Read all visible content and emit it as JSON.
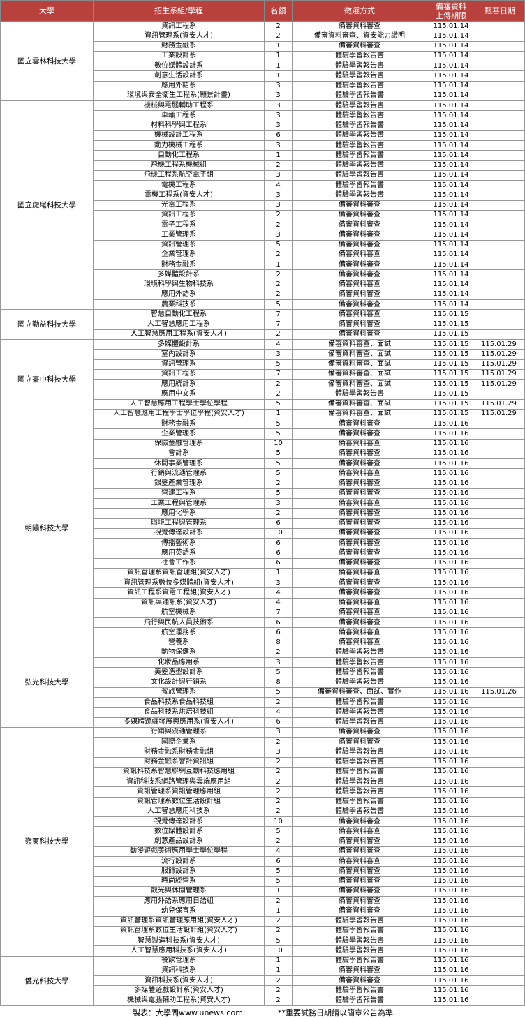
{
  "table": {
    "headers": [
      "大學",
      "招生系組/學程",
      "名額",
      "徵選方式",
      "備審資料上傳期限",
      "甄審日期"
    ],
    "groups": [
      {
        "university": "國立雲林科技大學",
        "rows": [
          [
            "資訊工程系",
            2,
            "備審資料審查",
            "115.01.14"
          ],
          [
            "資訊管理系(資安人才)",
            2,
            "備審資料審查、資安能力證明",
            "115.01.14"
          ],
          [
            "財務金融系",
            1,
            "備審資料審查",
            "115.01.14"
          ],
          [
            "工業設計系",
            1,
            "體驗學習報告書",
            "115.01.14"
          ],
          [
            "數位媒體設計系",
            1,
            "體驗學習報告書",
            "115.01.14"
          ],
          [
            "創意生活設計系",
            1,
            "體驗學習報告書",
            "115.01.14"
          ],
          [
            "應用外語系",
            3,
            "體驗學習報告書",
            "115.01.14"
          ],
          [
            "環境與安全衛生工程系(願景計畫)",
            3,
            "體驗學習報告書",
            "115.01.14"
          ]
        ]
      },
      {
        "university": "國立虎尾科技大學",
        "rows": [
          [
            "機械與電腦輔助工程系",
            3,
            "體驗學習報告書",
            "115.01.14"
          ],
          [
            "車輛工程系",
            3,
            "體驗學習報告書",
            "115.01.14"
          ],
          [
            "材料科學與工程系",
            3,
            "體驗學習報告書",
            "115.01.14"
          ],
          [
            "機械設計工程系",
            6,
            "體驗學習報告書",
            "115.01.14"
          ],
          [
            "動力機械工程系",
            3,
            "體驗學習報告書",
            "115.01.14"
          ],
          [
            "自動化工程系",
            1,
            "體驗學習報告書",
            "115.01.14"
          ],
          [
            "飛機工程系機械組",
            2,
            "體驗學習報告書",
            "115.01.14"
          ],
          [
            "飛機工程系航空電子組",
            3,
            "體驗學習報告書",
            "115.01.14"
          ],
          [
            "電機工程系",
            4,
            "體驗學習報告書",
            "115.01.14"
          ],
          [
            "電機工程系(資安人才)",
            3,
            "體驗學習報告書",
            "115.01.14"
          ],
          [
            "光電工程系",
            3,
            "備審資料審查",
            "115.01.14"
          ],
          [
            "資訊工程系",
            2,
            "備審資料審查",
            "115.01.14"
          ],
          [
            "電子工程系",
            2,
            "備審資料審查",
            "115.01.14"
          ],
          [
            "工業管理系",
            3,
            "備審資料審查",
            "115.01.14"
          ],
          [
            "資訊管理系",
            5,
            "備審資料審查",
            "115.01.14"
          ],
          [
            "企業管理系",
            2,
            "備審資料審查",
            "115.01.14"
          ],
          [
            "財務金融系",
            1,
            "備審資料審查",
            "115.01.14"
          ],
          [
            "多媒體設計系",
            2,
            "備審資料審查",
            "115.01.14"
          ],
          [
            "環境科學與生物科技系",
            2,
            "備審資料審查",
            "115.01.14"
          ],
          [
            "應用外語系",
            2,
            "備審資料審查",
            "115.01.14"
          ],
          [
            "農業科技系",
            5,
            "備審資料審查",
            "115.01.14"
          ]
        ]
      },
      {
        "university": "國立勤益科技大學",
        "rows": [
          [
            "智慧自動化工程系",
            7,
            "備審資料審查",
            "115.01.15"
          ],
          [
            "人工智慧應用工程系",
            7,
            "備審資料審查",
            "115.01.15"
          ],
          [
            "人工智慧應用工程系(資安人才)",
            2,
            "備審資料審查",
            "115.01.15"
          ]
        ]
      },
      {
        "university": "國立臺中科技大學",
        "rows": [
          [
            "多媒體設計系",
            4,
            "備審資料審查、面試",
            "115.01.15",
            "115.01.29"
          ],
          [
            "室內設計系",
            3,
            "備審資料審查、面試",
            "115.01.15",
            "115.01.29"
          ],
          [
            "資訊管理系",
            5,
            "備審資料審查、面試",
            "115.01.15",
            "115.01.29"
          ],
          [
            "資訊工程系",
            7,
            "備審資料審查、面試",
            "115.01.15",
            "115.01.29"
          ],
          [
            "應用統計系",
            2,
            "備審資料審查、面試",
            "115.01.15",
            "115.01.29"
          ],
          [
            "應用中文系",
            2,
            "體驗學習報告書",
            "115.01.15"
          ],
          [
            "人工智慧應用工程學士學位學程",
            5,
            "備審資料審查、面試",
            "115.01.15",
            "115.01.29"
          ],
          [
            "人工智慧應用工程學士學位學程(資安人才)",
            1,
            "備審資料審查、面試",
            "115.01.15",
            "115.01.29"
          ]
        ]
      },
      {
        "university": "朝陽科技大學",
        "rows": [
          [
            "財務金融系",
            5,
            "備審資料審查",
            "115.01.16"
          ],
          [
            "企業管理系",
            5,
            "備審資料審查",
            "115.01.16"
          ],
          [
            "保險金融管理系",
            10,
            "備審資料審查",
            "115.01.16"
          ],
          [
            "會計系",
            5,
            "備審資料審查",
            "115.01.16"
          ],
          [
            "休閒事業管理系",
            5,
            "備審資料審查",
            "115.01.16"
          ],
          [
            "行銷與流通管理系",
            5,
            "備審資料審查",
            "115.01.16"
          ],
          [
            "銀髮產業管理系",
            2,
            "備審資料審查",
            "115.01.16"
          ],
          [
            "營建工程系",
            5,
            "備審資料審查",
            "115.01.16"
          ],
          [
            "工業工程與管理系",
            3,
            "備審資料審查",
            "115.01.16"
          ],
          [
            "應用化學系",
            2,
            "備審資料審查",
            "115.01.16"
          ],
          [
            "環境工程與管理系",
            6,
            "備審資料審查",
            "115.01.16"
          ],
          [
            "視覺傳達設計系",
            10,
            "備審資料審查",
            "115.01.16"
          ],
          [
            "傳播藝術系",
            6,
            "備審資料審查",
            "115.01.16"
          ],
          [
            "應用英語系",
            6,
            "備審資料審查",
            "115.01.16"
          ],
          [
            "社會工作系",
            6,
            "備審資料審查",
            "115.01.16"
          ],
          [
            "資訊管理系資訊管理組(資安人才)",
            1,
            "備審資料審查",
            "115.01.16"
          ],
          [
            "資訊管理系數位多媒體組(資安人才)",
            3,
            "備審資料審查",
            "115.01.16"
          ],
          [
            "資訊工程系資電工程組(資安人才)",
            4,
            "備審資料審查",
            "115.01.16"
          ],
          [
            "資訊與通訊系(資安人才)",
            4,
            "備審資料審查",
            "115.01.16"
          ],
          [
            "航空機械系",
            7,
            "備審資料審查",
            "115.01.16"
          ],
          [
            "飛行與民航人員技術系",
            6,
            "備審資料審查",
            "115.01.16"
          ],
          [
            "航空運務系",
            6,
            "備審資料審查",
            "115.01.16"
          ]
        ]
      },
      {
        "university": "弘光科技大學",
        "rows": [
          [
            "營養系",
            8,
            "備審資料審查",
            "115.01.16"
          ],
          [
            "動物保健系",
            2,
            "體驗學習報告書",
            "115.01.16"
          ],
          [
            "化妝品應用系",
            3,
            "體驗學習報告書",
            "115.01.16"
          ],
          [
            "美髮造型設計系",
            5,
            "體驗學習報告書",
            "115.01.16"
          ],
          [
            "文化設計與行銷系",
            8,
            "體驗學習報告書",
            "115.01.16"
          ],
          [
            "餐旅管理系",
            5,
            "備審資料審查、面試、實作",
            "115.01.16",
            "115.01.26"
          ],
          [
            "食品科技系食品科技組",
            2,
            "體驗學習報告書",
            "115.01.16"
          ],
          [
            "食品科技系烘焙科技組",
            4,
            "體驗學習報告書",
            "115.01.16"
          ],
          [
            "多媒體遊戲發展與應用系(資安人才)",
            6,
            "體驗學習報告書",
            "115.01.16"
          ]
        ]
      },
      {
        "university": "嶺東科技大學",
        "rows": [
          [
            "行銷與流通管理系",
            3,
            "備審資料審查",
            "115.01.16"
          ],
          [
            "國際企業系",
            2,
            "備審資料審查",
            "115.01.16"
          ],
          [
            "財務金融系財務金融組",
            3,
            "體驗學習報告書",
            "115.01.16"
          ],
          [
            "財務金融系會計資訊組",
            2,
            "體驗學習報告書",
            "115.01.16"
          ],
          [
            "資訊科技系智慧聯網互動科技應用組",
            2,
            "體驗學習報告書",
            "115.01.16"
          ],
          [
            "資訊科技系網路管理與雲端應用組",
            2,
            "體驗學習報告書",
            "115.01.16"
          ],
          [
            "資訊管理系資訊管理應用組",
            2,
            "體驗學習報告書",
            "115.01.16"
          ],
          [
            "資訊管理系數位生活設計組",
            2,
            "體驗學習報告書",
            "115.01.16"
          ],
          [
            "人工智慧應用科技系",
            2,
            "體驗學習報告書",
            "115.01.16"
          ],
          [
            "視覺傳達設計系",
            10,
            "備審資料審查",
            "115.01.16"
          ],
          [
            "數位媒體設計系",
            5,
            "備審資料審查",
            "115.01.16"
          ],
          [
            "創意產品設計系",
            2,
            "備審資料審查",
            "115.01.16"
          ],
          [
            "動漫遊戲美術應用學士學位學程",
            4,
            "備審資料審查",
            "115.01.16"
          ],
          [
            "流行設計系",
            6,
            "備審資料審查",
            "115.01.16"
          ],
          [
            "服飾設計系",
            5,
            "備審資料審查",
            "115.01.16"
          ],
          [
            "時尚經營系",
            5,
            "備審資料審查",
            "115.01.16"
          ],
          [
            "觀光與休閒管理系",
            1,
            "備審資料審查",
            "115.01.16"
          ],
          [
            "應用外語系應用日語組",
            2,
            "備審資料審查",
            "115.01.16"
          ],
          [
            "幼兒保育系",
            1,
            "備審資料審查",
            "115.01.16"
          ],
          [
            "資訊管理系資訊管理應用組(資安人才)",
            2,
            "體驗學習報告書",
            "115.01.16"
          ],
          [
            "資訊管理系數位生活設計組(資安人才)",
            2,
            "體驗學習報告書",
            "115.01.16"
          ],
          [
            "智慧製造科技系(資安人才)",
            5,
            "體驗學習報告書",
            "115.01.16"
          ],
          [
            "人工智慧應用科技系(資安人才)",
            10,
            "體驗學習報告書",
            "115.01.16"
          ]
        ]
      },
      {
        "university": "僑光科技大學",
        "rows": [
          [
            "餐飲管理系",
            1,
            "體驗學習報告書",
            "115.01.16"
          ],
          [
            "資訊科技系",
            1,
            "備審資料審查",
            "115.01.16"
          ],
          [
            "資訊科技系(資安人才)",
            2,
            "備審資料審查",
            "115.01.16"
          ],
          [
            "多媒體遊戲設計系(資安人才)",
            2,
            "體驗學習報告書",
            "115.01.16"
          ],
          [
            "機械與電腦輔助工程系(資安人才)",
            2,
            "體驗學習報告書",
            "115.01.16"
          ]
        ]
      }
    ]
  },
  "footer": {
    "source": "製表：大學問www.unews.com",
    "note": "**重要試務日期請以簡章公告為準"
  }
}
